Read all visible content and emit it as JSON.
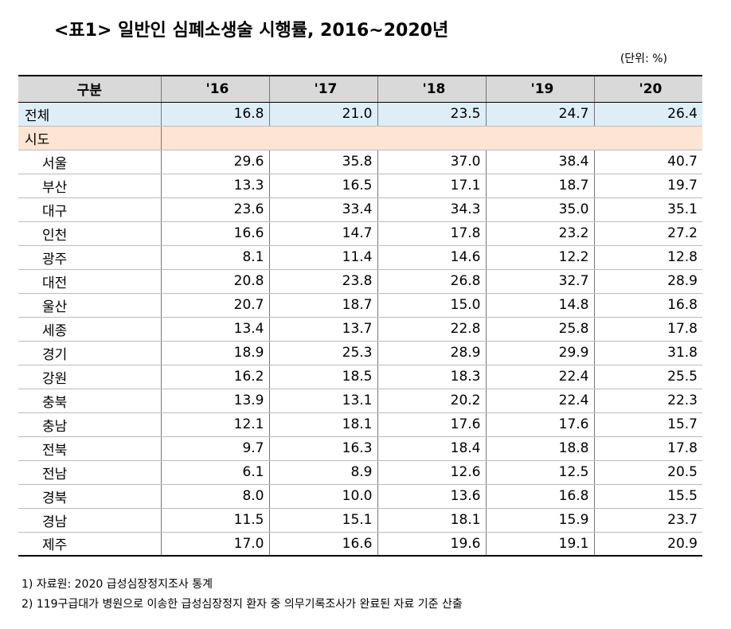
{
  "title": "<표1> 일반인 심폐소생술 시행률, 2016~2020년",
  "unit": "(단위: %)",
  "table": {
    "header": {
      "category": "구분",
      "years": [
        "'16",
        "'17",
        "'18",
        "'19",
        "'20"
      ]
    },
    "total": {
      "label": "전체",
      "values": [
        "16.8",
        "21.0",
        "23.5",
        "24.7",
        "26.4"
      ]
    },
    "section": {
      "label": "시도"
    },
    "rows": [
      {
        "label": "서울",
        "values": [
          "29.6",
          "35.8",
          "37.0",
          "38.4",
          "40.7"
        ]
      },
      {
        "label": "부산",
        "values": [
          "13.3",
          "16.5",
          "17.1",
          "18.7",
          "19.7"
        ]
      },
      {
        "label": "대구",
        "values": [
          "23.6",
          "33.4",
          "34.3",
          "35.0",
          "35.1"
        ]
      },
      {
        "label": "인천",
        "values": [
          "16.6",
          "14.7",
          "17.8",
          "23.2",
          "27.2"
        ]
      },
      {
        "label": "광주",
        "values": [
          "8.1",
          "11.4",
          "14.6",
          "12.2",
          "12.8"
        ]
      },
      {
        "label": "대전",
        "values": [
          "20.8",
          "23.8",
          "26.8",
          "32.7",
          "28.9"
        ]
      },
      {
        "label": "울산",
        "values": [
          "20.7",
          "18.7",
          "15.0",
          "14.8",
          "16.8"
        ]
      },
      {
        "label": "세종",
        "values": [
          "13.4",
          "13.7",
          "22.8",
          "25.8",
          "17.8"
        ]
      },
      {
        "label": "경기",
        "values": [
          "18.9",
          "25.3",
          "28.9",
          "29.9",
          "31.8"
        ]
      },
      {
        "label": "강원",
        "values": [
          "16.2",
          "18.5",
          "18.3",
          "22.4",
          "25.5"
        ]
      },
      {
        "label": "충북",
        "values": [
          "13.9",
          "13.1",
          "20.2",
          "22.4",
          "22.3"
        ]
      },
      {
        "label": "충남",
        "values": [
          "12.1",
          "18.1",
          "17.6",
          "17.6",
          "15.7"
        ]
      },
      {
        "label": "전북",
        "values": [
          "9.7",
          "16.3",
          "18.4",
          "18.8",
          "17.8"
        ]
      },
      {
        "label": "전남",
        "values": [
          "6.1",
          "8.9",
          "12.6",
          "12.5",
          "20.5"
        ]
      },
      {
        "label": "경북",
        "values": [
          "8.0",
          "10.0",
          "13.6",
          "16.8",
          "15.5"
        ]
      },
      {
        "label": "경남",
        "values": [
          "11.5",
          "15.1",
          "18.1",
          "15.9",
          "23.7"
        ]
      },
      {
        "label": "제주",
        "values": [
          "17.0",
          "16.6",
          "19.6",
          "19.1",
          "20.9"
        ]
      }
    ]
  },
  "notes": [
    "1) 자료원: 2020 급성심장정지조사 통계",
    "2) 119구급대가 병원으로 이송한 급성심장정지 환자 중 의무기록조사가 완료된 자료 기준 산출"
  ]
}
